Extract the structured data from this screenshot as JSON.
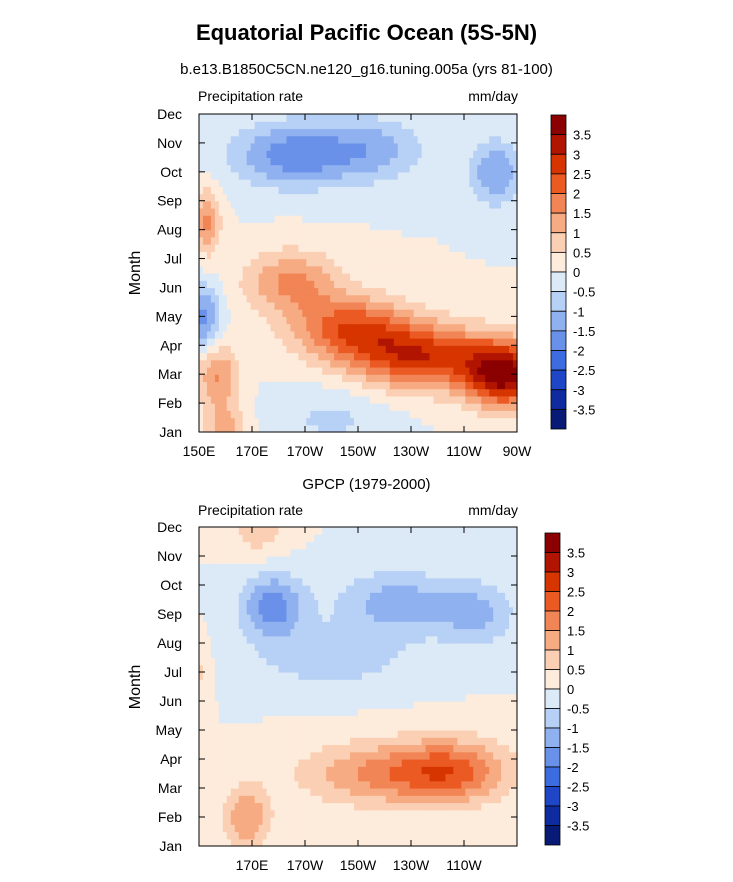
{
  "figure": {
    "title": "Equatorial Pacific Ocean (5S-5N)"
  },
  "chart_data": [
    {
      "type": "heatmap",
      "title": "b.e13.B1850C5CN.ne120_g16.tuning.005a (yrs 81-100)",
      "left_title": "Precipitation rate",
      "units": "mm/day",
      "xlabel": "",
      "ylabel": "Month",
      "x_ticks": [
        "150E",
        "170E",
        "170W",
        "150W",
        "130W",
        "110W",
        "90W"
      ],
      "y_ticks": [
        "Jan",
        "Feb",
        "Mar",
        "Apr",
        "May",
        "Jun",
        "Jul",
        "Aug",
        "Sep",
        "Oct",
        "Nov",
        "Dec"
      ],
      "xlim_deg_east": [
        150,
        270
      ],
      "colorbar_labels": [
        "3.5",
        "3",
        "2.5",
        "2",
        "1.5",
        "1",
        "0.5",
        "0",
        "-0.5",
        "-1",
        "-1.5",
        "-2",
        "-2.5",
        "-3",
        "-3.5"
      ],
      "anomaly_features": [
        {
          "lon": 265,
          "month": 3.0,
          "value": 3.6,
          "spread": 14
        },
        {
          "lon": 235,
          "month": 3.6,
          "value": 2.8,
          "spread": 26
        },
        {
          "lon": 208,
          "month": 4.6,
          "value": 2.3,
          "spread": 22
        },
        {
          "lon": 185,
          "month": 6.2,
          "value": 1.6,
          "spread": 18
        },
        {
          "lon": 153,
          "month": 8.3,
          "value": 1.6,
          "spread": 5
        },
        {
          "lon": 157,
          "month": 3.0,
          "value": 1.5,
          "spread": 8
        },
        {
          "lon": 160,
          "month": 1.0,
          "value": 1.2,
          "spread": 8
        },
        {
          "lon": 152,
          "month": 5.0,
          "value": -1.7,
          "spread": 6
        },
        {
          "lon": 185,
          "month": 10.6,
          "value": -1.8,
          "spread": 22
        },
        {
          "lon": 215,
          "month": 10.8,
          "value": -1.2,
          "spread": 20
        },
        {
          "lon": 262,
          "month": 10.0,
          "value": -1.5,
          "spread": 10
        },
        {
          "lon": 200,
          "month": 1.5,
          "value": -0.6,
          "spread": 22
        }
      ]
    },
    {
      "type": "heatmap",
      "title": "GPCP (1979-2000)",
      "left_title": "Precipitation rate",
      "units": "mm/day",
      "xlabel": "",
      "ylabel": "Month",
      "x_ticks": [
        "170E",
        "170W",
        "150W",
        "130W",
        "110W"
      ],
      "y_ticks": [
        "Jan",
        "Feb",
        "Mar",
        "Apr",
        "May",
        "Jun",
        "Jul",
        "Aug",
        "Sep",
        "Oct",
        "Nov",
        "Dec"
      ],
      "xlim_deg_east": [
        150,
        270
      ],
      "colorbar_labels": [
        "3.5",
        "3",
        "2.5",
        "2",
        "1.5",
        "1",
        "0.5",
        "0",
        "-0.5",
        "-1",
        "-1.5",
        "-2",
        "-2.5",
        "-3",
        "-3.5"
      ],
      "anomaly_features": [
        {
          "lon": 245,
          "month": 3.6,
          "value": 2.1,
          "spread": 22
        },
        {
          "lon": 215,
          "month": 3.5,
          "value": 1.4,
          "spread": 28
        },
        {
          "lon": 168,
          "month": 2.0,
          "value": 1.5,
          "spread": 9
        },
        {
          "lon": 172,
          "month": 12.1,
          "value": 0.9,
          "spread": 10
        },
        {
          "lon": 150,
          "month": 7.0,
          "value": 0.6,
          "spread": 4
        },
        {
          "lon": 178,
          "month": 9.3,
          "value": -1.8,
          "spread": 12
        },
        {
          "lon": 225,
          "month": 9.4,
          "value": -1.3,
          "spread": 22
        },
        {
          "lon": 255,
          "month": 9.0,
          "value": -1.1,
          "spread": 14
        },
        {
          "lon": 200,
          "month": 7.5,
          "value": -0.8,
          "spread": 30
        }
      ]
    }
  ]
}
